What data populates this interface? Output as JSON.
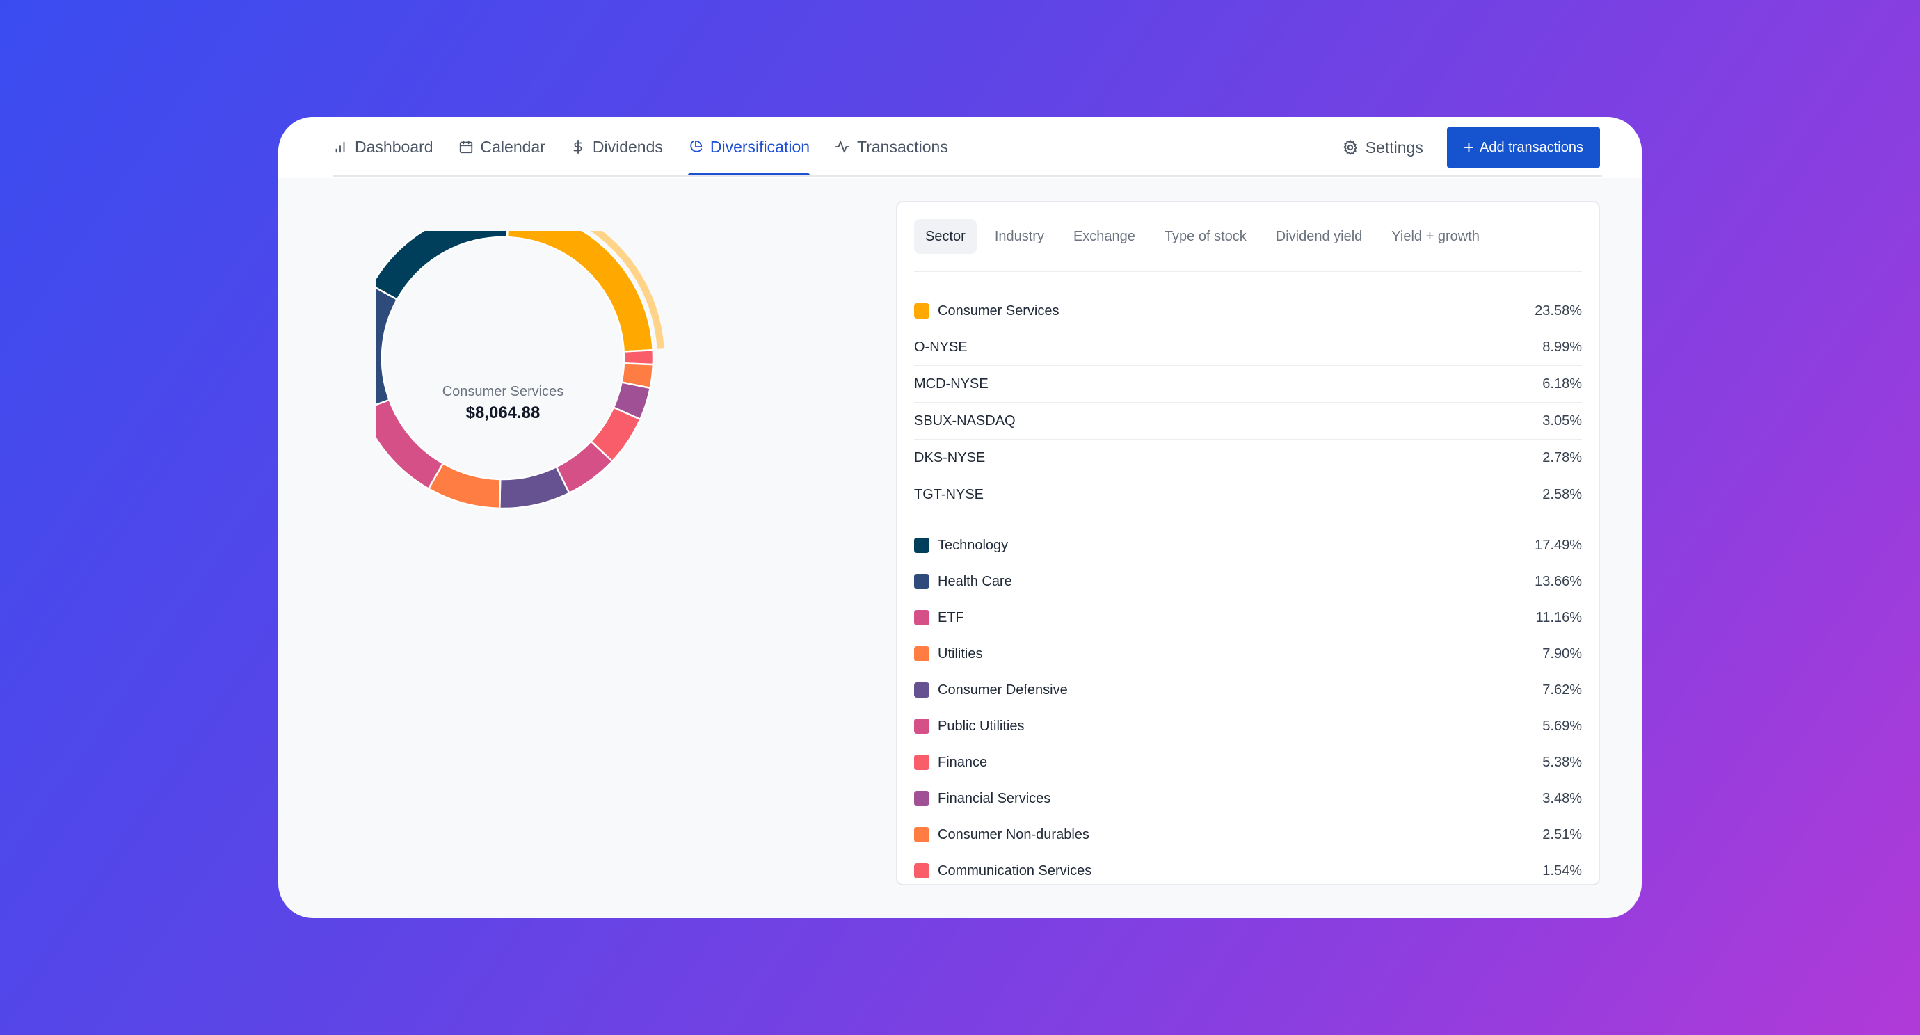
{
  "nav": {
    "items": [
      {
        "label": "Dashboard",
        "icon": "bar-chart-icon"
      },
      {
        "label": "Calendar",
        "icon": "calendar-icon"
      },
      {
        "label": "Dividends",
        "icon": "dollar-icon"
      },
      {
        "label": "Diversification",
        "icon": "pie-chart-icon"
      },
      {
        "label": "Transactions",
        "icon": "activity-icon"
      }
    ],
    "active": "Diversification",
    "settings_label": "Settings",
    "add_button_label": "Add transactions"
  },
  "donut": {
    "center_label": "Consumer Services",
    "center_value": "$8,064.88",
    "highlighted": "Consumer Services"
  },
  "tabs": [
    "Sector",
    "Industry",
    "Exchange",
    "Type of stock",
    "Dividend yield",
    "Yield + growth"
  ],
  "active_tab": "Sector",
  "expanded": {
    "name": "Consumer Services",
    "pct": "23.58%",
    "color": "#ffa800",
    "holdings": [
      {
        "name": "O-NYSE",
        "pct": "8.99%"
      },
      {
        "name": "MCD-NYSE",
        "pct": "6.18%"
      },
      {
        "name": "SBUX-NASDAQ",
        "pct": "3.05%"
      },
      {
        "name": "DKS-NYSE",
        "pct": "2.78%"
      },
      {
        "name": "TGT-NYSE",
        "pct": "2.58%"
      }
    ]
  },
  "sectors": [
    {
      "name": "Technology",
      "pct": "17.49%",
      "color": "#003f5c"
    },
    {
      "name": "Health Care",
      "pct": "13.66%",
      "color": "#2f4b7c"
    },
    {
      "name": "ETF",
      "pct": "11.16%",
      "color": "#d45087"
    },
    {
      "name": "Utilities",
      "pct": "7.90%",
      "color": "#ff7c43"
    },
    {
      "name": "Consumer Defensive",
      "pct": "7.62%",
      "color": "#665191"
    },
    {
      "name": "Public Utilities",
      "pct": "5.69%",
      "color": "#d45087"
    },
    {
      "name": "Finance",
      "pct": "5.38%",
      "color": "#f95d6a"
    },
    {
      "name": "Financial Services",
      "pct": "3.48%",
      "color": "#a05195"
    },
    {
      "name": "Consumer Non-durables",
      "pct": "2.51%",
      "color": "#ff7c43"
    },
    {
      "name": "Communication Services",
      "pct": "1.54%",
      "color": "#f95d6a"
    }
  ],
  "chart_data": {
    "type": "pie",
    "categories": [
      "Consumer Services",
      "Communication Services",
      "Consumer Non-durables",
      "Financial Services",
      "Finance",
      "Public Utilities",
      "Consumer Defensive",
      "Utilities",
      "ETF",
      "Health Care",
      "Technology"
    ],
    "values": [
      23.58,
      1.54,
      2.51,
      3.48,
      5.38,
      5.69,
      7.62,
      7.9,
      11.16,
      13.66,
      17.49
    ],
    "colors": [
      "#ffa800",
      "#f95d6a",
      "#ff7c43",
      "#a05195",
      "#f95d6a",
      "#d45087",
      "#665191",
      "#ff7c43",
      "#d45087",
      "#2f4b7c",
      "#003f5c"
    ]
  }
}
